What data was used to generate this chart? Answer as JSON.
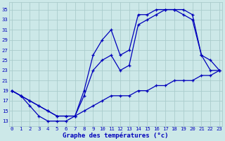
{
  "title": "Graphe des températures (°c)",
  "bg_color": "#cce8e8",
  "grid_color": "#aacccc",
  "line_color": "#0000bb",
  "x_ticks": [
    0,
    1,
    2,
    3,
    4,
    5,
    6,
    7,
    8,
    9,
    10,
    11,
    12,
    13,
    14,
    15,
    16,
    17,
    18,
    19,
    20,
    21,
    22,
    23
  ],
  "y_ticks": [
    13,
    15,
    17,
    19,
    21,
    23,
    25,
    27,
    29,
    31,
    33,
    35
  ],
  "ylim": [
    12.0,
    36.5
  ],
  "xlim": [
    -0.3,
    23.3
  ],
  "curve1_x": [
    0,
    1,
    2,
    3,
    4,
    5,
    6,
    7,
    8,
    9,
    10,
    11,
    12,
    13,
    14,
    15,
    16,
    17,
    18,
    19,
    20,
    21,
    22,
    23
  ],
  "curve1_y": [
    19,
    18,
    16,
    14,
    13,
    13,
    13,
    14,
    19,
    26,
    29,
    31,
    26,
    27,
    34,
    34,
    35,
    35,
    35,
    34,
    33,
    26,
    23,
    23
  ],
  "curve2_x": [
    0,
    1,
    2,
    3,
    4,
    5,
    6,
    7,
    8,
    9,
    10,
    11,
    12,
    13,
    14,
    15,
    16,
    17,
    18,
    19,
    20,
    21,
    22,
    23
  ],
  "curve2_y": [
    19,
    18,
    17,
    16,
    15,
    14,
    14,
    14,
    18,
    23,
    25,
    26,
    23,
    24,
    32,
    33,
    34,
    35,
    35,
    35,
    34,
    26,
    25,
    23
  ],
  "curve3_x": [
    0,
    1,
    2,
    3,
    4,
    5,
    6,
    7,
    8,
    9,
    10,
    11,
    12,
    13,
    14,
    15,
    16,
    17,
    18,
    19,
    20,
    21,
    22,
    23
  ],
  "curve3_y": [
    19,
    18,
    17,
    16,
    15,
    14,
    14,
    14,
    15,
    16,
    17,
    18,
    18,
    18,
    19,
    19,
    20,
    20,
    21,
    21,
    21,
    22,
    22,
    23
  ],
  "figsize": [
    3.2,
    2.0
  ],
  "dpi": 100,
  "xlabel_fontsize": 6.5,
  "tick_fontsize": 5.2
}
